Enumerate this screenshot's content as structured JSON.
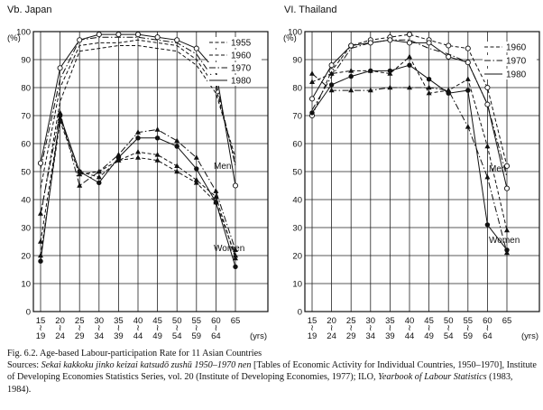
{
  "chart_data": [
    {
      "type": "line",
      "title": "Vb. Japan",
      "ylabel": "(%)",
      "xlabel": "(yrs)",
      "ylim": [
        0,
        100
      ],
      "yticks": [
        0,
        10,
        20,
        30,
        40,
        50,
        60,
        70,
        80,
        90,
        100
      ],
      "categories": [
        "15-19",
        "20-24",
        "25-29",
        "30-34",
        "35-39",
        "40-44",
        "45-49",
        "50-54",
        "55-59",
        "60-64",
        "65"
      ],
      "xtick_top": [
        "15",
        "20",
        "25",
        "30",
        "35",
        "40",
        "45",
        "50",
        "55",
        "60",
        "65"
      ],
      "xtick_bottom": [
        "19",
        "24",
        "29",
        "34",
        "39",
        "44",
        "49",
        "54",
        "59",
        "64"
      ],
      "range_mark": "≀",
      "legend": [
        "1955",
        "1960",
        "1970",
        "1980"
      ],
      "side_labels": [
        "Men",
        "Women"
      ],
      "series": [
        {
          "name": "1955",
          "group": "Men",
          "style": "dash",
          "marker": "none",
          "values": [
            34,
            75,
            93,
            94,
            95,
            95,
            94,
            93,
            88,
            78,
            55
          ]
        },
        {
          "name": "1960",
          "group": "Men",
          "style": "dash",
          "marker": "none",
          "values": [
            44,
            80,
            95,
            96,
            96,
            97,
            96,
            95,
            90,
            80,
            53
          ]
        },
        {
          "name": "1970",
          "group": "Men",
          "style": "dashdot",
          "marker": "none",
          "values": [
            51,
            83,
            97,
            98,
            98,
            98,
            97,
            96,
            92,
            82,
            52
          ]
        },
        {
          "name": "1980",
          "group": "Men",
          "style": "solid",
          "marker": "circle-open",
          "values": [
            53,
            87,
            97,
            99,
            99,
            99,
            98,
            97,
            94,
            86,
            45
          ]
        },
        {
          "name": "1955",
          "group": "Women",
          "style": "dash",
          "marker": "triangle",
          "values": [
            20,
            68,
            49,
            50,
            54,
            55,
            54,
            50,
            46,
            39,
            20
          ]
        },
        {
          "name": "1960",
          "group": "Women",
          "style": "dash",
          "marker": "triangle",
          "values": [
            25,
            69,
            50,
            48,
            54,
            57,
            56,
            52,
            47,
            41,
            19
          ]
        },
        {
          "name": "1970",
          "group": "Women",
          "style": "dashdot",
          "marker": "triangle",
          "values": [
            35,
            71,
            45,
            50,
            56,
            64,
            65,
            61,
            55,
            43,
            22
          ]
        },
        {
          "name": "1980",
          "group": "Women",
          "style": "solid",
          "marker": "circle-filled",
          "values": [
            18,
            70,
            50,
            46,
            55,
            62,
            62,
            59,
            51,
            39,
            16
          ]
        }
      ]
    },
    {
      "type": "line",
      "title": "VI. Thailand",
      "ylabel": "(%)",
      "xlabel": "(yrs)",
      "ylim": [
        0,
        100
      ],
      "yticks": [
        0,
        10,
        20,
        30,
        40,
        50,
        60,
        70,
        80,
        90,
        100
      ],
      "categories": [
        "15-19",
        "20-24",
        "25-29",
        "30-34",
        "35-39",
        "40-44",
        "45-49",
        "50-54",
        "55-59",
        "60-64",
        "65"
      ],
      "xtick_top": [
        "15",
        "20",
        "25",
        "30",
        "35",
        "40",
        "45",
        "50",
        "55",
        "60",
        "65"
      ],
      "xtick_bottom": [
        "19",
        "24",
        "29",
        "34",
        "39",
        "44",
        "49",
        "54",
        "59",
        "64"
      ],
      "range_mark": "≀",
      "legend": [
        "1960",
        "1970",
        "1980"
      ],
      "side_labels": [
        "Men",
        "Women"
      ],
      "series": [
        {
          "name": "1960",
          "group": "Men",
          "style": "dash",
          "marker": "circle-open",
          "values": [
            70,
            86,
            95,
            97,
            98,
            99,
            97,
            95,
            94,
            80,
            52
          ]
        },
        {
          "name": "1970",
          "group": "Men",
          "style": "dashdot",
          "marker": "none",
          "values": [
            72,
            84,
            94,
            96,
            97,
            97,
            94,
            92,
            89,
            74,
            48
          ]
        },
        {
          "name": "1980",
          "group": "Men",
          "style": "solid",
          "marker": "circle-open",
          "values": [
            76,
            88,
            95,
            96,
            97,
            96,
            96,
            91,
            89,
            74,
            44
          ]
        },
        {
          "name": "1960",
          "group": "Women",
          "style": "dash",
          "marker": "triangle",
          "values": [
            82,
            85,
            86,
            86,
            85,
            91,
            78,
            79,
            83,
            59,
            29
          ]
        },
        {
          "name": "1970",
          "group": "Women",
          "style": "dashdot",
          "marker": "triangle",
          "values": [
            85,
            79,
            79,
            79,
            80,
            80,
            80,
            79,
            66,
            48,
            21
          ]
        },
        {
          "name": "1980",
          "group": "Women",
          "style": "solid",
          "marker": "circle-filled",
          "values": [
            71,
            81,
            84,
            86,
            86,
            88,
            83,
            78,
            79,
            31,
            22
          ]
        }
      ]
    }
  ],
  "caption": {
    "title": "Fig. 6.2.   Age-based Labour-participation Rate for 11 Asian Countries",
    "sources_prefix": "Sources: ",
    "work1_italic": "Sekai kakkoku jinko keizai katsudō zushū 1950–1970 nen",
    "work1_rest": " [Tables of Economic Activity for Individual Countries, 1950–1970], Institute of Developing Economies Statistics Series, vol. 20 (Institute of Developing Economies, 1977); ILO, ",
    "work2_italic": "Yearbook of Labour Statistics",
    "work2_rest": " (1983, 1984)."
  }
}
